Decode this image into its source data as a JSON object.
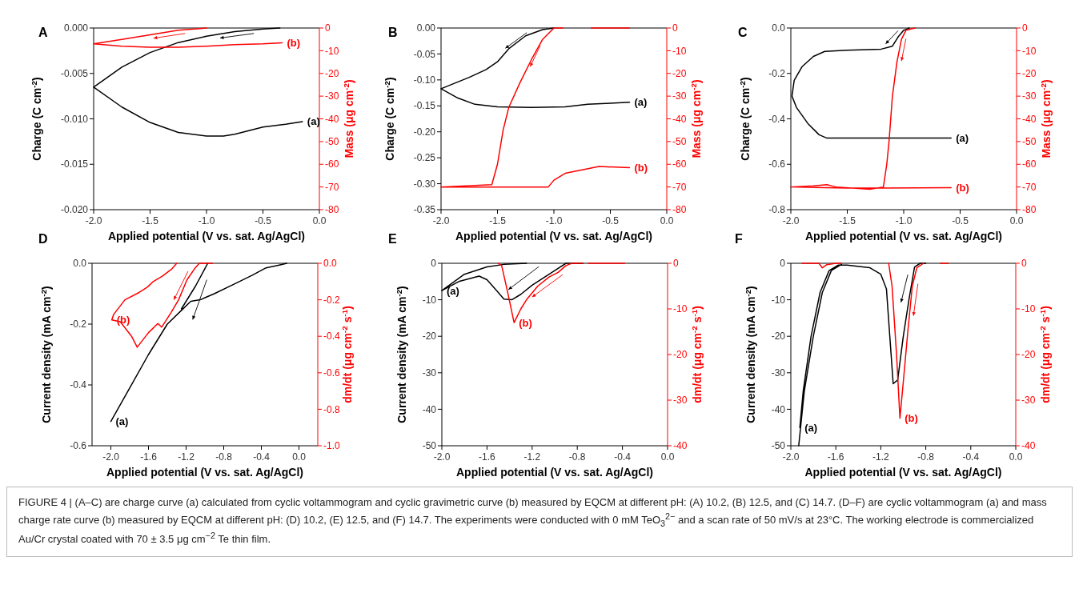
{
  "chart_data": [
    {
      "type": "line",
      "title": "A",
      "xlabel": "Applied potential (V vs. sat. Ag/AgCl)",
      "ylabel": "Charge (C cm$^{-2}$)",
      "y2label": "Mass (μg cm$^{-2}$)",
      "xlim": [
        -2,
        0
      ],
      "xticks": [
        {
          "value": -2,
          "label": "-2.0"
        },
        {
          "value": -1.5,
          "label": "-1.5"
        },
        {
          "value": -1,
          "label": "-1.0"
        },
        {
          "value": -0.5,
          "label": "-0.5"
        },
        {
          "value": 0,
          "label": "0.0"
        }
      ],
      "ylim": [
        -0.02,
        0
      ],
      "yticks": [
        {
          "value": -0.02,
          "label": "-0.020"
        },
        {
          "value": -0.015,
          "label": "-0.015"
        },
        {
          "value": -0.01,
          "label": "-0.010"
        },
        {
          "value": -0.005,
          "label": "-0.005"
        },
        {
          "value": 0,
          "label": "0.000"
        }
      ],
      "y2lim": [
        -80,
        0
      ],
      "y2ticks": [
        -80,
        -70,
        -60,
        -50,
        -40,
        -30,
        -20,
        -10,
        0
      ],
      "series": [
        {
          "name": "(a)",
          "color": "#000000",
          "x": [
            -0.35,
            -0.5,
            -0.75,
            -1.0,
            -1.25,
            -1.5,
            -1.75,
            -2.0,
            -1.75,
            -1.5,
            -1.25,
            -1.0,
            -0.85,
            -0.75,
            -0.5,
            -0.3,
            -0.15
          ],
          "values": [
            0,
            -0.0001,
            -0.0004,
            -0.0009,
            -0.0016,
            -0.0027,
            -0.0043,
            -0.0065,
            -0.0087,
            -0.0104,
            -0.0115,
            -0.0119,
            -0.0119,
            -0.0117,
            -0.0109,
            -0.0106,
            -0.0103
          ]
        },
        {
          "name": "(b)",
          "color": "#ff0000",
          "axis": "y2",
          "x": [
            -1.0,
            -1.25,
            -1.5,
            -1.75,
            -2.0,
            -1.75,
            -1.5,
            -1.25,
            -1.0,
            -0.75,
            -0.5,
            -0.33
          ],
          "values": [
            0,
            -1,
            -3,
            -5,
            -7,
            -8,
            -8.5,
            -8.5,
            -8,
            -7.3,
            -7,
            -6.5
          ]
        }
      ]
    },
    {
      "type": "line",
      "title": "B",
      "xlabel": "Applied potential (V vs. sat. Ag/AgCl)",
      "ylabel": "Charge (C cm$^{-2}$)",
      "y2label": "Mass (μg cm$^{-2}$)",
      "xlim": [
        -2,
        0
      ],
      "xticks": [
        {
          "value": -2,
          "label": "-2.0"
        },
        {
          "value": -1.5,
          "label": "-1.5"
        },
        {
          "value": -1,
          "label": "-1.0"
        },
        {
          "value": -0.5,
          "label": "-0.5"
        },
        {
          "value": 0,
          "label": "0.0"
        }
      ],
      "ylim": [
        -0.35,
        0
      ],
      "yticks": [
        {
          "value": -0.35,
          "label": "-0.35"
        },
        {
          "value": -0.3,
          "label": "-0.30"
        },
        {
          "value": -0.25,
          "label": "-0.25"
        },
        {
          "value": -0.2,
          "label": "-0.20"
        },
        {
          "value": -0.15,
          "label": "-0.15"
        },
        {
          "value": -0.1,
          "label": "-0.10"
        },
        {
          "value": -0.05,
          "label": "-0.05"
        },
        {
          "value": 0,
          "label": "0.00"
        }
      ],
      "y2lim": [
        -80,
        0
      ],
      "y2ticks": [
        -80,
        -70,
        -60,
        -50,
        -40,
        -30,
        -20,
        -10,
        0
      ],
      "series": [
        {
          "name": "(a)",
          "color": "#000000",
          "x": [
            -1.0,
            -1.1,
            -1.25,
            -1.4,
            -1.5,
            -1.6,
            -1.75,
            -2.0,
            -1.85,
            -1.7,
            -1.5,
            -1.2,
            -0.9,
            -0.7,
            -0.5,
            -0.33
          ],
          "values": [
            0,
            -0.003,
            -0.015,
            -0.04,
            -0.065,
            -0.08,
            -0.095,
            -0.117,
            -0.135,
            -0.147,
            -0.152,
            -0.153,
            -0.152,
            -0.147,
            -0.145,
            -0.143
          ]
        },
        {
          "name": "(b)",
          "color": "#ff0000",
          "axis": "y2",
          "x": [
            -0.33,
            -0.67,
            -0.8,
            -0.92,
            -1.0,
            -1.1,
            -1.2,
            -1.3,
            -1.4,
            -1.45,
            -1.5,
            -1.55,
            -2.0,
            -1.5,
            -1.05,
            -1.0,
            -0.9,
            -0.6,
            -0.33
          ],
          "values": [
            0,
            0,
            null,
            0,
            0,
            -5,
            -14,
            -24,
            -35,
            -45,
            -60,
            -69,
            -70,
            -70,
            -70,
            -67,
            -64,
            -61,
            -61.5
          ]
        }
      ]
    },
    {
      "type": "line",
      "title": "C",
      "xlabel": "Applied potential (V vs. sat. Ag/AgCl)",
      "ylabel": "Charge (C cm$^{-2}$)",
      "y2label": "Mass (μg cm$^{-2}$)",
      "xlim": [
        -2,
        0
      ],
      "xticks": [
        {
          "value": -2,
          "label": "-2.0"
        },
        {
          "value": -1.5,
          "label": "-1.5"
        },
        {
          "value": -1,
          "label": "-1.0"
        },
        {
          "value": -0.5,
          "label": "-0.5"
        },
        {
          "value": 0,
          "label": "0.0"
        }
      ],
      "ylim": [
        -0.8,
        0
      ],
      "yticks": [
        {
          "value": -0.8,
          "label": "-0.8"
        },
        {
          "value": -0.6,
          "label": "-0.6"
        },
        {
          "value": -0.4,
          "label": "-0.4"
        },
        {
          "value": -0.2,
          "label": "-0.2"
        },
        {
          "value": 0,
          "label": "0.0"
        }
      ],
      "y2lim": [
        -80,
        0
      ],
      "y2ticks": [
        -80,
        -70,
        -60,
        -50,
        -40,
        -30,
        -20,
        -10,
        0
      ],
      "series": [
        {
          "name": "(a)",
          "color": "#000000",
          "x": [
            -0.95,
            -1.0,
            -1.05,
            -1.1,
            -1.2,
            -1.5,
            -1.7,
            -1.8,
            -1.9,
            -1.97,
            -1.99,
            -1.95,
            -1.85,
            -1.75,
            -1.68,
            -1.3,
            -0.58
          ],
          "values": [
            0,
            -0.01,
            -0.04,
            -0.08,
            -0.093,
            -0.098,
            -0.103,
            -0.125,
            -0.17,
            -0.23,
            -0.3,
            -0.35,
            -0.42,
            -0.47,
            -0.485,
            -0.485,
            -0.485
          ]
        },
        {
          "name": "(b)",
          "color": "#ff0000",
          "axis": "y2",
          "x": [
            -0.9,
            -0.98,
            -1.02,
            -1.06,
            -1.1,
            -1.13,
            -1.15,
            -1.18,
            -1.3,
            -1.6,
            -1.68,
            -1.8,
            -2.0,
            -1.5,
            -1.2,
            -0.58
          ],
          "values": [
            0,
            -1,
            -5,
            -15,
            -30,
            -50,
            -60,
            -70,
            -71,
            -70,
            -69,
            -69.5,
            -70,
            -70.5,
            -70.5,
            -70.3
          ]
        }
      ]
    },
    {
      "type": "line",
      "title": "D",
      "xlabel": "Applied potential (V vs. sat. Ag/AgCl)",
      "ylabel": "Current density (mA cm$^{-2}$)",
      "y2label": "dm/dt (μg cm$^{-2}$ s$^{-1}$)",
      "xlim": [
        -2.2,
        0.2
      ],
      "xticks": [
        {
          "value": -2,
          "label": "-2.0"
        },
        {
          "value": -1.6,
          "label": "-1.6"
        },
        {
          "value": -1.2,
          "label": "-1.2"
        },
        {
          "value": -0.8,
          "label": "-0.8"
        },
        {
          "value": -0.4,
          "label": "-0.4"
        },
        {
          "value": 0,
          "label": "0.0"
        }
      ],
      "ylim": [
        -0.6,
        0
      ],
      "yticks": [
        {
          "value": -0.6,
          "label": "-0.6"
        },
        {
          "value": -0.4,
          "label": "-0.4"
        },
        {
          "value": -0.2,
          "label": "-0.2"
        },
        {
          "value": 0,
          "label": "0.0"
        }
      ],
      "y2lim": [
        -1,
        0
      ],
      "y2ticks": [
        {
          "value": -1,
          "label": "-1.0"
        },
        {
          "value": -0.8,
          "label": "-0.8"
        },
        {
          "value": -0.6,
          "label": "-0.6"
        },
        {
          "value": -0.4,
          "label": "-0.4"
        },
        {
          "value": -0.2,
          "label": "-0.2"
        },
        {
          "value": 0,
          "label": "0.0"
        }
      ],
      "series": [
        {
          "name": "(a)",
          "color": "#000000",
          "x": [
            -0.97,
            -1.1,
            -1.25,
            null,
            -0.13,
            -0.2,
            -0.35,
            -0.5,
            -0.7,
            -0.9,
            -1.05,
            -1.15,
            -1.25,
            -1.4,
            -1.6,
            -1.8,
            -2.0
          ],
          "values": [
            0,
            -0.075,
            -0.15,
            null,
            0,
            -0.005,
            -0.015,
            -0.04,
            -0.07,
            -0.1,
            -0.12,
            -0.125,
            -0.155,
            -0.2,
            -0.3,
            -0.41,
            -0.52
          ]
        },
        {
          "name": "(b)",
          "color": "#ff0000",
          "axis": "y2",
          "x": [
            -0.92,
            -1.06,
            -1.11,
            -1.19,
            -1.28,
            -1.36,
            -1.46,
            -1.5,
            -1.6,
            -1.72,
            -1.78,
            -1.9,
            -1.99,
            null,
            -1.3,
            -1.35,
            -1.45,
            -1.55,
            -1.61,
            -1.7,
            -1.85,
            -1.97,
            -1.99
          ],
          "values": [
            0,
            0,
            -0.03,
            -0.09,
            -0.2,
            -0.27,
            -0.35,
            -0.33,
            -0.38,
            -0.46,
            -0.4,
            -0.32,
            -0.31,
            null,
            0,
            -0.03,
            -0.07,
            -0.1,
            -0.13,
            -0.16,
            -0.2,
            -0.28,
            -0.31
          ]
        }
      ]
    },
    {
      "type": "line",
      "title": "E",
      "xlabel": "Applied potential (V vs. sat. Ag/AgCl)",
      "ylabel": "Current density (mA cm$^{-2}$)",
      "y2label": "dm/dt (μg cm$^{-2}$ s$^{-1}$)",
      "xlim": [
        -2,
        0
      ],
      "xticks": [
        {
          "value": -2,
          "label": "-2.0"
        },
        {
          "value": -1.6,
          "label": "-1.6"
        },
        {
          "value": -1.2,
          "label": "-1.2"
        },
        {
          "value": -0.8,
          "label": "-0.8"
        },
        {
          "value": -0.4,
          "label": "-0.4"
        },
        {
          "value": 0,
          "label": "0.0"
        }
      ],
      "ylim": [
        -50,
        0
      ],
      "yticks": [
        -50,
        -40,
        -30,
        -20,
        -10,
        0
      ],
      "y2lim": [
        -40,
        0
      ],
      "y2ticks": [
        -40,
        -30,
        -20,
        -10,
        0
      ],
      "series": [
        {
          "name": "(a)",
          "color": "#000000",
          "x": [
            -1.25,
            -1.45,
            -1.6,
            -1.8,
            -2.0,
            null,
            -0.75,
            -0.9,
            -1.0,
            -1.2,
            -1.3,
            -1.38,
            -1.45,
            -1.5,
            -1.6,
            -1.67,
            -1.85,
            -2.0
          ],
          "values": [
            0,
            -0.3,
            -1,
            -3,
            -7.5,
            null,
            0,
            0,
            -2,
            -6,
            -8.5,
            -10,
            -9.8,
            -8,
            -4.5,
            -3.5,
            -5,
            -7.5
          ]
        },
        {
          "name": "(b)",
          "color": "#ff0000",
          "axis": "y2",
          "x": [
            -0.38,
            -0.7,
            null,
            -1.5,
            -1.47,
            -1.42,
            -1.36,
            null,
            -0.75,
            -0.85,
            -0.9,
            -0.97,
            -1.05,
            -1.15,
            -1.2,
            -1.25,
            -1.3,
            -1.36
          ],
          "values": [
            0,
            0,
            null,
            0,
            -0.5,
            -6,
            -13,
            null,
            0,
            0,
            -0.5,
            -2,
            -3,
            -5,
            -6.5,
            -8,
            -10,
            -13
          ]
        }
      ]
    },
    {
      "type": "line",
      "title": "F",
      "xlabel": "Applied potential (V vs. sat. Ag/AgCl)",
      "ylabel": "Current density (mA cm$^{-2}$)",
      "y2label": "dm/dt (μg cm$^{-2}$ s$^{-1}$)",
      "xlim": [
        -2,
        0
      ],
      "xticks": [
        {
          "value": -2,
          "label": "-2.0"
        },
        {
          "value": -1.6,
          "label": "-1.6"
        },
        {
          "value": -1.2,
          "label": "-1.2"
        },
        {
          "value": -0.8,
          "label": "-0.8"
        },
        {
          "value": -0.4,
          "label": "-0.4"
        },
        {
          "value": 0,
          "label": "0.0"
        }
      ],
      "ylim": [
        -50,
        0
      ],
      "yticks": [
        -50,
        -40,
        -30,
        -20,
        -10,
        0
      ],
      "y2lim": [
        -40,
        0
      ],
      "y2ticks": [
        -40,
        -30,
        -20,
        -10,
        0
      ],
      "series": [
        {
          "name": "(a)",
          "color": "#000000",
          "x": [
            -1.55,
            -1.64,
            -1.72,
            -1.8,
            -1.88,
            -1.93,
            null,
            -0.8,
            -0.85,
            -0.9,
            -0.95,
            -1.0,
            -1.05,
            -1.09,
            -1.12,
            -1.15,
            -1.2,
            -1.3,
            -1.5,
            -1.58,
            -1.66,
            -1.74,
            -1.82,
            -1.89,
            -1.92
          ],
          "values": [
            -0.3,
            -2,
            -8,
            -20,
            -35,
            -50,
            null,
            0,
            0,
            -1,
            -10,
            -20,
            -32,
            -33,
            -20,
            -7,
            -3,
            -1.2,
            -0.5,
            -0.5,
            -2,
            -8,
            -20,
            -35,
            -45
          ]
        },
        {
          "name": "(b)",
          "color": "#ff0000",
          "axis": "y2",
          "x": [
            -1.9,
            -1.75,
            -1.72,
            -1.68,
            -1.6,
            -1.55,
            null,
            -0.6,
            -0.67,
            null,
            -1.13,
            -1.1,
            -1.06,
            -1.03,
            null,
            -0.82,
            -0.88,
            -0.92,
            -0.96,
            -1.0,
            -1.03
          ],
          "values": [
            0,
            0,
            -1,
            -0.3,
            0,
            0,
            null,
            0,
            0,
            null,
            0,
            -5,
            -20,
            -34,
            null,
            0,
            -1,
            -5,
            -15,
            -26,
            -34
          ]
        }
      ]
    },
    {
      "type": "other",
      "annotations": [
        "FIGURE 4 | (A–C) are charge curve (a) calculated from cyclic voltammogram and cyclic gravimetric curve (b) measured by EQCM at different pH: (A) 10.2, (B) 12.5, and (C) 14.7. (D–F) are cyclic voltammogram (a) and mass charge rate curve (b) measured by EQCM at different pH: (D) 10.2, (E) 12.5, and (F) 14.7. The experiments were conducted with 0 mM TeO$_{3}$$^{2−}$ and a scan rate of 50 mV/s at 23°C. The working electrode is commercialized Au/Cr crystal coated with 70 ± 3.5 μg cm$^{−2}$ Te thin film."
      ]
    }
  ]
}
